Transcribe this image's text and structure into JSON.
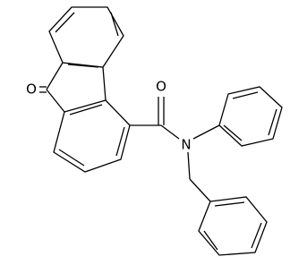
{
  "atoms": [
    {
      "label": "O"
    },
    {
      "label": "O"
    },
    {
      "label": "N"
    }
  ]
}
